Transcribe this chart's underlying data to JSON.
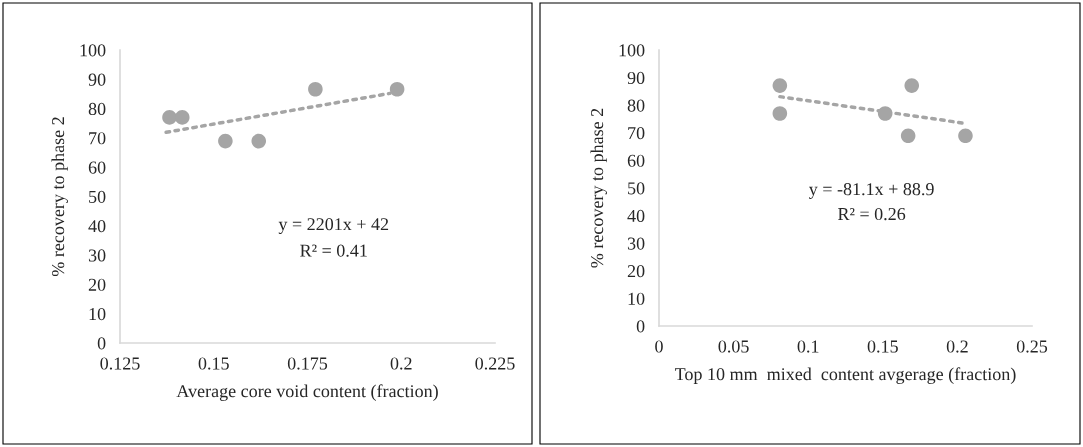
{
  "chart_data": [
    {
      "type": "scatter",
      "xlabel": "Average core void content (fraction)",
      "ylabel": "% recovery to phase 2",
      "xlim": [
        0.125,
        0.225
      ],
      "xticks": [
        0.125,
        0.15,
        0.175,
        0.2,
        0.225
      ],
      "ylim": [
        0,
        100
      ],
      "yticks": [
        0,
        10,
        20,
        30,
        40,
        50,
        60,
        70,
        80,
        90,
        100
      ],
      "grid": false,
      "series": [
        {
          "marker": "circle",
          "color": "#a5a5a5",
          "x": [
            0.1382,
            0.1416,
            0.1531,
            0.162,
            0.1771,
            0.1989
          ],
          "values": [
            77,
            77,
            68.9,
            68.9,
            86.6,
            86.6
          ]
        },
        {
          "type": "line",
          "color": "#a5a5a5",
          "line_style": "dotted",
          "x": [
            0.1373,
            0.197
          ],
          "values": [
            71.9,
            85.2
          ]
        }
      ],
      "annotations": [
        "y = 2201x + 42",
        "R² = 0.41"
      ]
    },
    {
      "type": "scatter",
      "xlabel": "Top 10 mm  mixed  content avgerage (fraction)",
      "ylabel": "% recovery to phase 2",
      "xlim": [
        0,
        0.25
      ],
      "xticks": [
        0,
        0.05,
        0.1,
        0.15,
        0.2,
        0.25
      ],
      "ylim": [
        0,
        100
      ],
      "yticks": [
        0,
        10,
        20,
        30,
        40,
        50,
        60,
        70,
        80,
        90,
        100
      ],
      "grid": false,
      "series": [
        {
          "marker": "circle",
          "color": "#a5a5a5",
          "x": [
            0.081,
            0.081,
            0.1516,
            0.167,
            0.1694,
            0.2054
          ],
          "values": [
            87.1,
            77,
            77,
            68.9,
            87.1,
            68.9
          ]
        },
        {
          "type": "line",
          "color": "#a5a5a5",
          "line_style": "dotted",
          "x": [
            0.081,
            0.2054
          ],
          "values": [
            83.1,
            73.4
          ]
        }
      ],
      "annotations": [
        "y = -81.1x + 88.9",
        "R² = 0.26"
      ]
    }
  ]
}
